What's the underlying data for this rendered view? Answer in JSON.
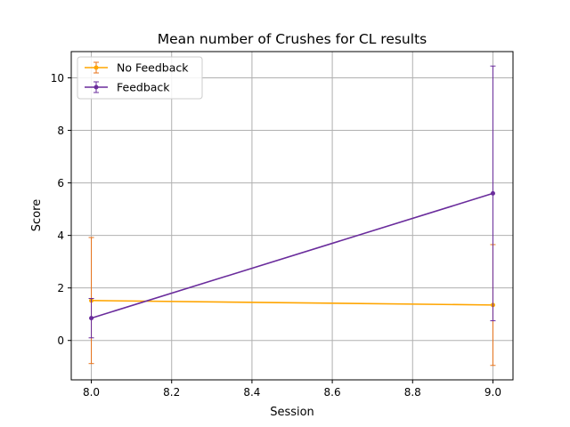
{
  "chart_data": {
    "type": "line",
    "title": "Mean number of Crushes for CL results",
    "xlabel": "Session",
    "ylabel": "Score",
    "xlim": [
      7.95,
      9.05
    ],
    "ylim": [
      -1.5,
      11.0
    ],
    "xticks": [
      8.0,
      8.2,
      8.4,
      8.6,
      8.8,
      9.0
    ],
    "xtick_labels": [
      "8.0",
      "8.2",
      "8.4",
      "8.6",
      "8.8",
      "9.0"
    ],
    "yticks": [
      0,
      2,
      4,
      6,
      8,
      10
    ],
    "ytick_labels": [
      "0",
      "2",
      "4",
      "6",
      "8",
      "10"
    ],
    "grid": true,
    "legend_position": "upper-left",
    "x": [
      8.0,
      9.0
    ],
    "series": [
      {
        "name": "No Feedback",
        "color": "#ffa500",
        "errcolor": "#e8731a",
        "values": [
          1.52,
          1.35
        ],
        "yerr": [
          2.4,
          2.3
        ]
      },
      {
        "name": "Feedback",
        "color": "#6a2c9c",
        "errcolor": "#6a2c9c",
        "values": [
          0.85,
          5.6
        ],
        "yerr": [
          0.75,
          4.85
        ]
      }
    ]
  }
}
